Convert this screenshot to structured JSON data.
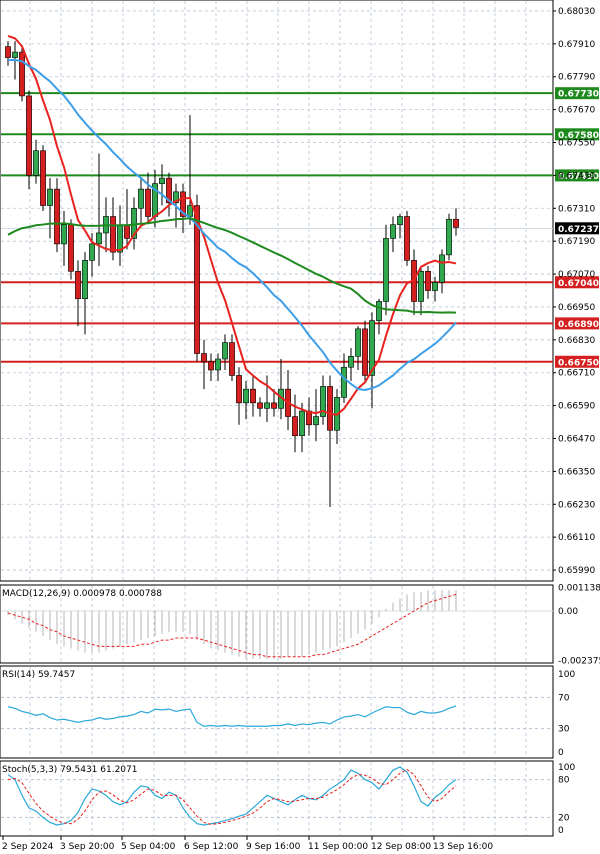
{
  "chart_data": {
    "type": "candlestick",
    "main": {
      "price_ticks": [
        "0.68030",
        "0.67910",
        "0.67790",
        "0.67670",
        "0.67550",
        "0.67430",
        "0.67310",
        "0.67190",
        "0.67070",
        "0.66950",
        "0.66830",
        "0.66710",
        "0.66590",
        "0.66470",
        "0.66350",
        "0.66230",
        "0.66110",
        "0.65990"
      ],
      "ylim": [
        0.6595,
        0.6807
      ],
      "levels": [
        {
          "label": "0.67730",
          "value": 0.6773,
          "color": "#1e8a1e"
        },
        {
          "label": "0.67580",
          "value": 0.6758,
          "color": "#1e8a1e"
        },
        {
          "label": "0.67430",
          "value": 0.6743,
          "color": "#1e8a1e"
        },
        {
          "label": "0.67040",
          "value": 0.6704,
          "color": "#d42020"
        },
        {
          "label": "0.66890",
          "value": 0.6689,
          "color": "#d42020"
        },
        {
          "label": "0.66750",
          "value": 0.6675,
          "color": "#d42020"
        }
      ],
      "current_price": {
        "label": "0.67237",
        "value": 0.67237,
        "color": "#000000"
      },
      "candles": [
        [
          0.679,
          0.6792,
          0.6783,
          0.6786
        ],
        [
          0.6786,
          0.6792,
          0.6778,
          0.6788
        ],
        [
          0.6788,
          0.679,
          0.677,
          0.6772
        ],
        [
          0.6772,
          0.6774,
          0.6738,
          0.6743
        ],
        [
          0.6743,
          0.6756,
          0.674,
          0.6752
        ],
        [
          0.6752,
          0.6754,
          0.673,
          0.6732
        ],
        [
          0.6732,
          0.6742,
          0.672,
          0.6738
        ],
        [
          0.6738,
          0.6742,
          0.6715,
          0.6718
        ],
        [
          0.6718,
          0.673,
          0.671,
          0.6725
        ],
        [
          0.6725,
          0.6727,
          0.6705,
          0.6708
        ],
        [
          0.6708,
          0.6712,
          0.6688,
          0.6698
        ],
        [
          0.6698,
          0.6715,
          0.6685,
          0.6712
        ],
        [
          0.6712,
          0.6722,
          0.6706,
          0.6718
        ],
        [
          0.6718,
          0.6751,
          0.671,
          0.6722
        ],
        [
          0.6722,
          0.6735,
          0.6715,
          0.6728
        ],
        [
          0.6728,
          0.6735,
          0.6712,
          0.6715
        ],
        [
          0.6715,
          0.6732,
          0.671,
          0.6725
        ],
        [
          0.6725,
          0.6738,
          0.6716,
          0.672
        ],
        [
          0.672,
          0.6735,
          0.6716,
          0.6731
        ],
        [
          0.6731,
          0.6742,
          0.6724,
          0.6738
        ],
        [
          0.6738,
          0.6744,
          0.6726,
          0.6728
        ],
        [
          0.6728,
          0.6745,
          0.6724,
          0.674
        ],
        [
          0.674,
          0.6747,
          0.6732,
          0.6742
        ],
        [
          0.6742,
          0.6744,
          0.6728,
          0.6733
        ],
        [
          0.6733,
          0.674,
          0.6724,
          0.6737
        ],
        [
          0.6737,
          0.674,
          0.6722,
          0.6728
        ],
        [
          0.6728,
          0.6765,
          0.6725,
          0.6732
        ],
        [
          0.6732,
          0.6736,
          0.6675,
          0.6678
        ],
        [
          0.6678,
          0.6683,
          0.6665,
          0.6675
        ],
        [
          0.6675,
          0.6678,
          0.6668,
          0.6672
        ],
        [
          0.6672,
          0.6678,
          0.6668,
          0.6676
        ],
        [
          0.6676,
          0.6685,
          0.6672,
          0.6682
        ],
        [
          0.6682,
          0.6685,
          0.6668,
          0.667
        ],
        [
          0.667,
          0.6673,
          0.6652,
          0.666
        ],
        [
          0.666,
          0.6668,
          0.6654,
          0.6665
        ],
        [
          0.6665,
          0.667,
          0.6655,
          0.666
        ],
        [
          0.666,
          0.6662,
          0.6655,
          0.6658
        ],
        [
          0.6658,
          0.667,
          0.6653,
          0.666
        ],
        [
          0.666,
          0.6665,
          0.6655,
          0.6658
        ],
        [
          0.6658,
          0.6676,
          0.6654,
          0.6665
        ],
        [
          0.6665,
          0.6672,
          0.665,
          0.6655
        ],
        [
          0.6655,
          0.6663,
          0.6642,
          0.6648
        ],
        [
          0.6648,
          0.666,
          0.6642,
          0.6657
        ],
        [
          0.6657,
          0.6662,
          0.6648,
          0.6652
        ],
        [
          0.6652,
          0.6665,
          0.6646,
          0.6655
        ],
        [
          0.6655,
          0.667,
          0.6652,
          0.6666
        ],
        [
          0.6666,
          0.667,
          0.6622,
          0.665
        ],
        [
          0.665,
          0.6665,
          0.6645,
          0.6662
        ],
        [
          0.6662,
          0.6678,
          0.666,
          0.6673
        ],
        [
          0.6673,
          0.668,
          0.6668,
          0.6677
        ],
        [
          0.6677,
          0.6688,
          0.6672,
          0.6687
        ],
        [
          0.6687,
          0.669,
          0.6668,
          0.667
        ],
        [
          0.667,
          0.6693,
          0.6658,
          0.669
        ],
        [
          0.669,
          0.6698,
          0.6685,
          0.6697
        ],
        [
          0.6697,
          0.6725,
          0.6692,
          0.672
        ],
        [
          0.672,
          0.6728,
          0.6715,
          0.6725
        ],
        [
          0.6725,
          0.6729,
          0.672,
          0.6728
        ],
        [
          0.6728,
          0.673,
          0.671,
          0.6712
        ],
        [
          0.6712,
          0.6716,
          0.6692,
          0.6697
        ],
        [
          0.6697,
          0.671,
          0.6692,
          0.6708
        ],
        [
          0.6708,
          0.671,
          0.6698,
          0.6701
        ],
        [
          0.6701,
          0.6706,
          0.6697,
          0.6704
        ],
        [
          0.6704,
          0.6716,
          0.67,
          0.6714
        ],
        [
          0.6714,
          0.6729,
          0.6712,
          0.6727
        ],
        [
          0.6727,
          0.6731,
          0.6721,
          0.6724
        ]
      ]
    },
    "macd": {
      "label": "MACD(12,26,9) 0.000978 0.000788",
      "ticks": [
        "0.001138",
        "0.00",
        "-0.002375"
      ],
      "ylim": [
        -0.0025,
        0.00125
      ],
      "histogram": [
        -0.0002,
        -0.0004,
        -0.0006,
        -0.0008,
        -0.001,
        -0.0012,
        -0.0014,
        -0.0016,
        -0.0017,
        -0.0018,
        -0.0019,
        -0.002,
        -0.002,
        -0.002,
        -0.0019,
        -0.0018,
        -0.0017,
        -0.0016,
        -0.0015,
        -0.0014,
        -0.0013,
        -0.0012,
        -0.0011,
        -0.001,
        -0.001,
        -0.001,
        -0.0011,
        -0.0014,
        -0.0016,
        -0.0018,
        -0.0019,
        -0.002,
        -0.0021,
        -0.0022,
        -0.0023,
        -0.0023,
        -0.0023,
        -0.0023,
        -0.0023,
        -0.0023,
        -0.0022,
        -0.0022,
        -0.0022,
        -0.0021,
        -0.002,
        -0.0019,
        -0.0018,
        -0.0017,
        -0.0015,
        -0.0013,
        -0.0011,
        -0.0009,
        -0.0006,
        -0.0003,
        0.0001,
        0.0004,
        0.0006,
        0.0008,
        0.0009,
        0.0009,
        0.001,
        0.001,
        0.001,
        0.001,
        0.001
      ],
      "signal": [
        -0.0001,
        -0.0002,
        -0.0003,
        -0.0004,
        -0.0006,
        -0.0007,
        -0.0009,
        -0.001,
        -0.0012,
        -0.0013,
        -0.0014,
        -0.0015,
        -0.0016,
        -0.0017,
        -0.0017,
        -0.0017,
        -0.0017,
        -0.0017,
        -0.0017,
        -0.0016,
        -0.0016,
        -0.0015,
        -0.0014,
        -0.0014,
        -0.0013,
        -0.0013,
        -0.0013,
        -0.0013,
        -0.0014,
        -0.0015,
        -0.0016,
        -0.0017,
        -0.0018,
        -0.0019,
        -0.002,
        -0.0021,
        -0.0021,
        -0.0022,
        -0.0022,
        -0.0022,
        -0.0022,
        -0.0022,
        -0.0022,
        -0.0022,
        -0.0021,
        -0.0021,
        -0.002,
        -0.0019,
        -0.0018,
        -0.0017,
        -0.0016,
        -0.0014,
        -0.0012,
        -0.001,
        -0.0008,
        -0.0006,
        -0.0004,
        -0.0002,
        0.0,
        0.0002,
        0.0004,
        0.0005,
        0.0006,
        0.0007,
        0.0008
      ]
    },
    "rsi": {
      "label": "RSI(14) 59.7457",
      "ticks": [
        "100",
        "70",
        "30",
        "0"
      ],
      "ylim": [
        0,
        100
      ],
      "values": [
        58,
        56,
        52,
        50,
        47,
        49,
        44,
        41,
        42,
        40,
        38,
        40,
        41,
        44,
        42,
        43,
        45,
        46,
        48,
        52,
        50,
        55,
        54,
        55,
        52,
        54,
        55,
        38,
        33,
        34,
        33,
        34,
        33,
        34,
        33,
        33,
        33,
        33,
        34,
        34,
        36,
        34,
        36,
        35,
        37,
        38,
        36,
        41,
        45,
        46,
        48,
        45,
        50,
        54,
        58,
        57,
        57,
        51,
        48,
        52,
        50,
        50,
        52,
        56,
        59
      ]
    },
    "stoch": {
      "label": "Stoch(5,3,3) 79.5431 61.2071",
      "ticks": [
        "100",
        "80",
        "20",
        "0"
      ],
      "ylim": [
        0,
        100
      ],
      "k": [
        88,
        80,
        55,
        35,
        30,
        20,
        12,
        8,
        10,
        15,
        28,
        50,
        65,
        62,
        55,
        45,
        40,
        45,
        60,
        70,
        68,
        55,
        50,
        60,
        55,
        35,
        20,
        10,
        8,
        10,
        12,
        15,
        18,
        22,
        25,
        35,
        45,
        55,
        50,
        45,
        40,
        48,
        55,
        50,
        48,
        55,
        65,
        72,
        80,
        95,
        90,
        80,
        75,
        65,
        80,
        95,
        100,
        92,
        70,
        45,
        38,
        52,
        60,
        72,
        80
      ],
      "d": [
        80,
        82,
        75,
        58,
        42,
        30,
        22,
        15,
        11,
        10,
        17,
        30,
        48,
        60,
        62,
        56,
        47,
        43,
        48,
        57,
        65,
        63,
        55,
        55,
        55,
        48,
        35,
        22,
        12,
        9,
        10,
        12,
        15,
        18,
        22,
        27,
        35,
        45,
        50,
        48,
        45,
        46,
        48,
        50,
        50,
        52,
        58,
        64,
        72,
        82,
        88,
        87,
        82,
        74,
        72,
        80,
        90,
        96,
        88,
        70,
        52,
        45,
        50,
        61,
        70
      ]
    },
    "x_labels": [
      "2 Sep 2024",
      "3 Sep 20:00",
      "5 Sep 04:00",
      "6 Sep 12:00",
      "9 Sep 16:00",
      "11 Sep 00:00",
      "12 Sep 08:00",
      "13 Sep 16:00"
    ]
  }
}
